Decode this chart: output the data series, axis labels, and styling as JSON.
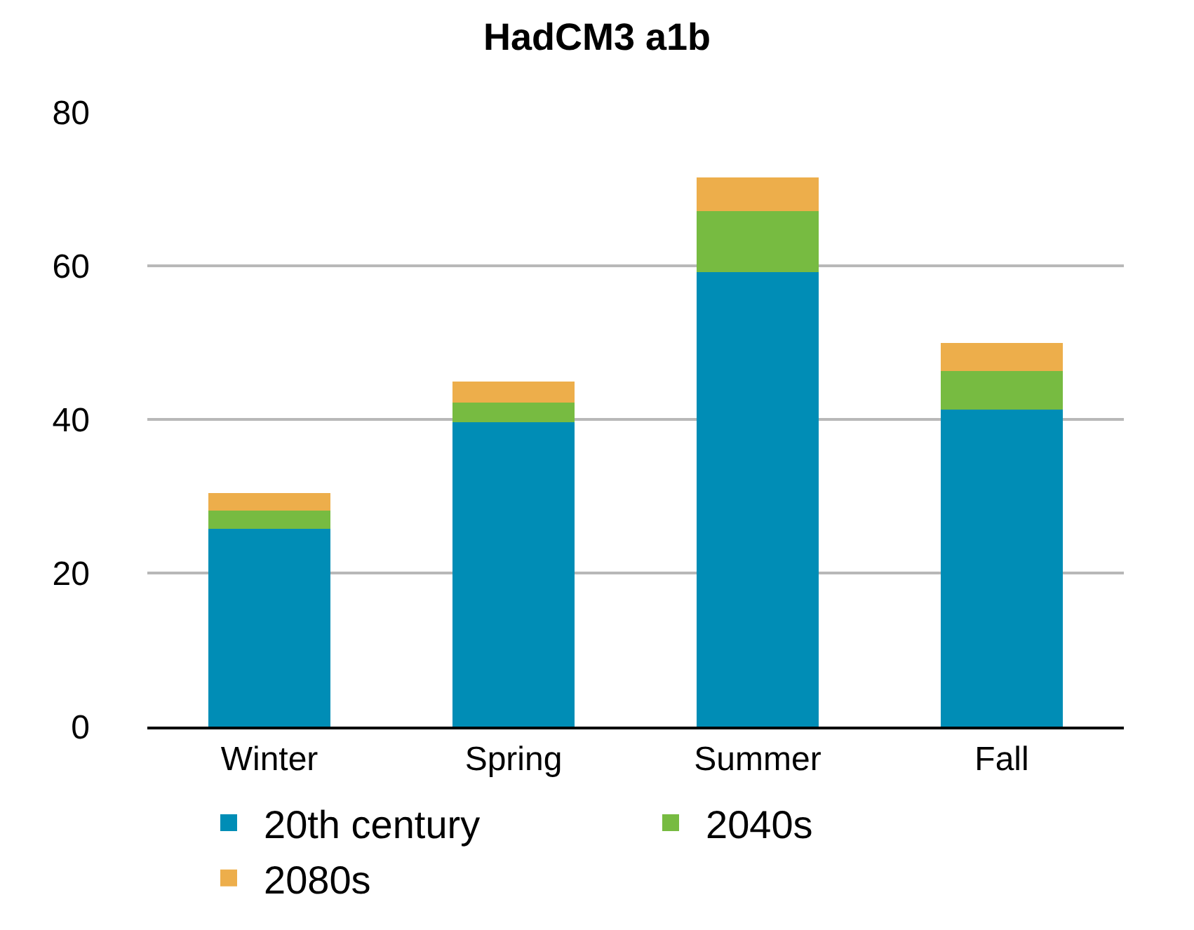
{
  "chart_data": {
    "type": "bar",
    "title": "HadCM3 a1b",
    "categories": [
      "Winter",
      "Spring",
      "Summer",
      "Fall"
    ],
    "stacked": true,
    "series": [
      {
        "name": "20th century",
        "color": "#008db6",
        "values": [
          25.8,
          39.6,
          59.2,
          41.3
        ]
      },
      {
        "name": "2040s",
        "color": "#77bb41",
        "values": [
          2.3,
          2.6,
          7.9,
          5.0
        ]
      },
      {
        "name": "2080s",
        "color": "#edae4b",
        "values": [
          2.3,
          2.7,
          4.4,
          3.7
        ]
      }
    ],
    "ylim": [
      0,
      80
    ],
    "yticks": [
      0,
      20,
      40,
      60,
      80
    ],
    "grid": "y",
    "legend": "bottom"
  }
}
